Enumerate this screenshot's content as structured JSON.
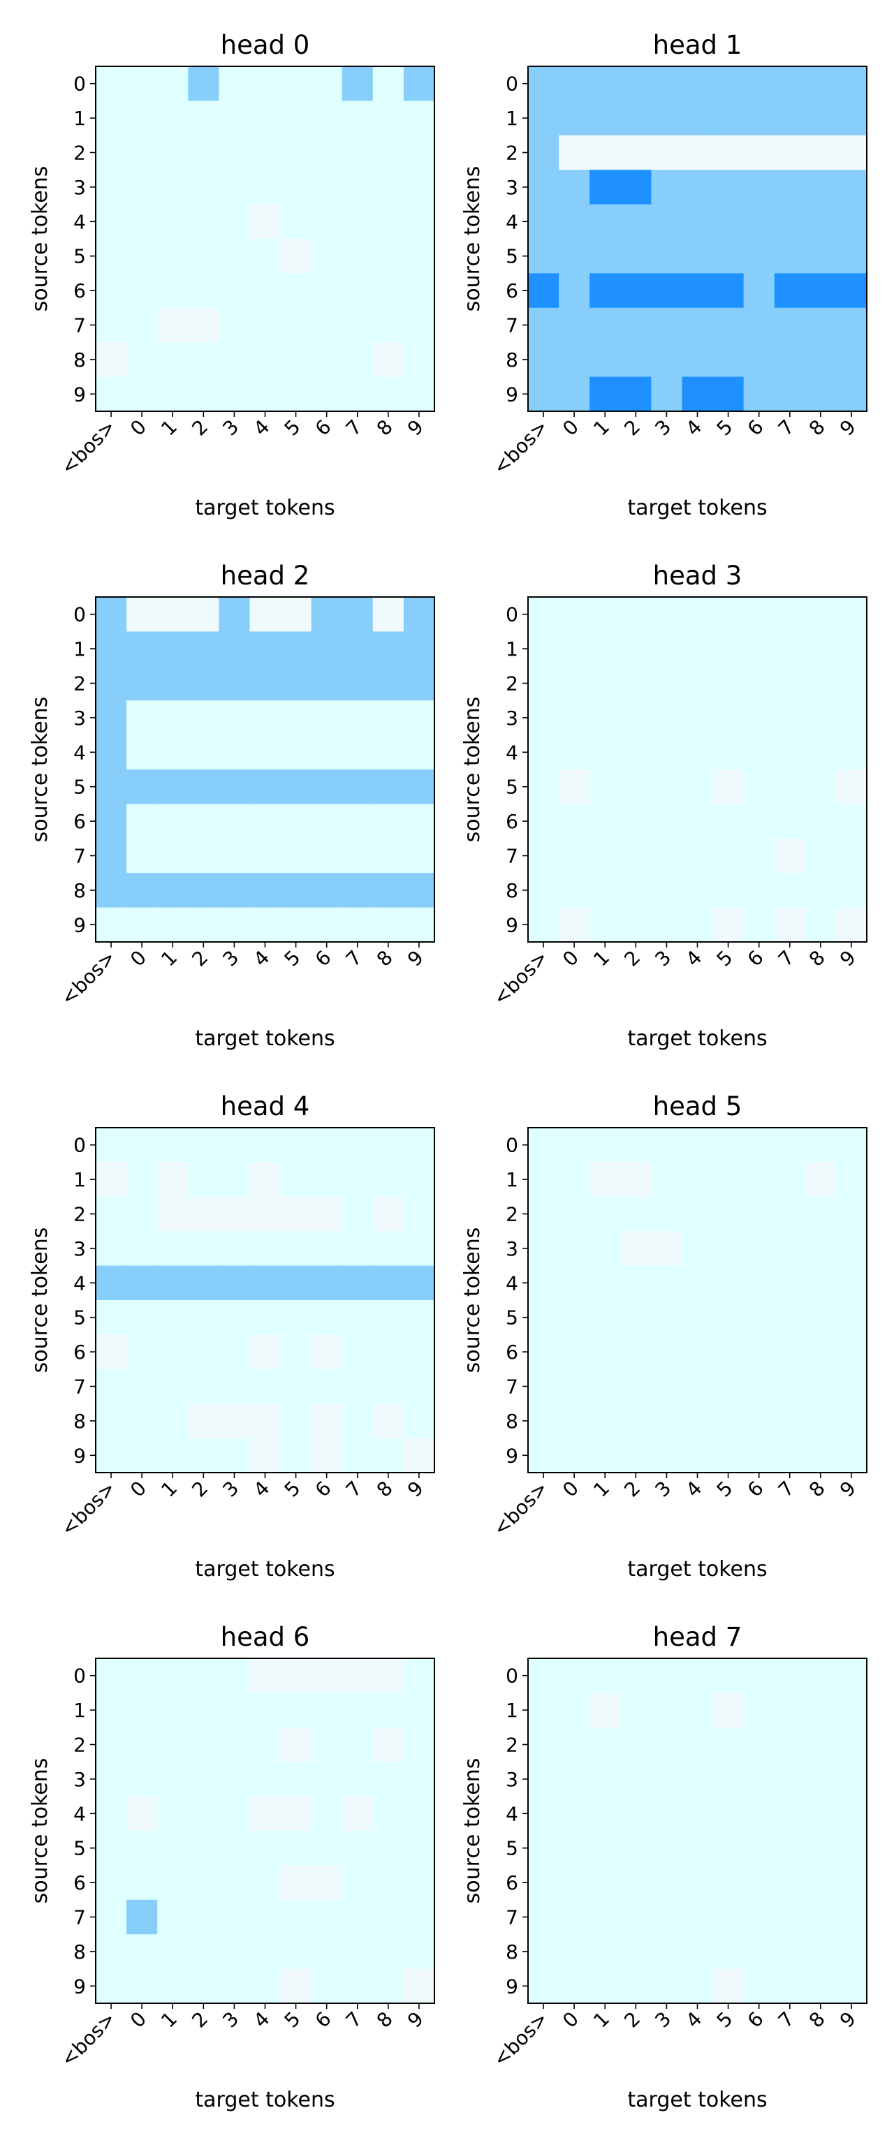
{
  "palette": {
    "0": "#f0fafc",
    "1": "#e0ffff",
    "2": "#87cefa",
    "3": "#1e90ff",
    "frame": "#000000",
    "background": "#ffffff"
  },
  "chart_data": [
    {
      "type": "heatmap",
      "title": "head 0",
      "xlabel": "target tokens",
      "ylabel": "source tokens",
      "x_ticks": [
        "<bos>",
        "0",
        "1",
        "2",
        "3",
        "4",
        "5",
        "6",
        "7",
        "8",
        "9"
      ],
      "y_ticks": [
        "0",
        "1",
        "2",
        "3",
        "4",
        "5",
        "6",
        "7",
        "8",
        "9"
      ],
      "grid": false,
      "cells": [
        [
          1,
          1,
          1,
          2,
          1,
          1,
          1,
          1,
          2,
          1,
          2
        ],
        [
          1,
          1,
          1,
          1,
          1,
          1,
          1,
          1,
          1,
          1,
          1
        ],
        [
          1,
          1,
          1,
          1,
          1,
          1,
          1,
          1,
          1,
          1,
          1
        ],
        [
          1,
          1,
          1,
          1,
          1,
          1,
          1,
          1,
          1,
          1,
          1
        ],
        [
          1,
          1,
          1,
          1,
          1,
          0,
          1,
          1,
          1,
          1,
          1
        ],
        [
          1,
          1,
          1,
          1,
          1,
          1,
          0,
          1,
          1,
          1,
          1
        ],
        [
          1,
          1,
          1,
          1,
          1,
          1,
          1,
          1,
          1,
          1,
          1
        ],
        [
          1,
          1,
          0,
          0,
          1,
          1,
          1,
          1,
          1,
          1,
          1
        ],
        [
          0,
          1,
          1,
          1,
          1,
          1,
          1,
          1,
          1,
          0,
          1
        ],
        [
          1,
          1,
          1,
          1,
          1,
          1,
          1,
          1,
          1,
          1,
          1
        ]
      ]
    },
    {
      "type": "heatmap",
      "title": "head 1",
      "xlabel": "target tokens",
      "ylabel": "source tokens",
      "x_ticks": [
        "<bos>",
        "0",
        "1",
        "2",
        "3",
        "4",
        "5",
        "6",
        "7",
        "8",
        "9"
      ],
      "y_ticks": [
        "0",
        "1",
        "2",
        "3",
        "4",
        "5",
        "6",
        "7",
        "8",
        "9"
      ],
      "grid": false,
      "cells": [
        [
          2,
          2,
          2,
          2,
          2,
          2,
          2,
          2,
          2,
          2,
          2
        ],
        [
          2,
          2,
          2,
          2,
          2,
          2,
          2,
          2,
          2,
          2,
          2
        ],
        [
          2,
          0,
          0,
          0,
          0,
          0,
          0,
          0,
          0,
          0,
          0
        ],
        [
          2,
          2,
          3,
          3,
          2,
          2,
          2,
          2,
          2,
          2,
          2
        ],
        [
          2,
          2,
          2,
          2,
          2,
          2,
          2,
          2,
          2,
          2,
          2
        ],
        [
          2,
          2,
          2,
          2,
          2,
          2,
          2,
          2,
          2,
          2,
          2
        ],
        [
          3,
          2,
          3,
          3,
          3,
          3,
          3,
          2,
          3,
          3,
          3
        ],
        [
          2,
          2,
          2,
          2,
          2,
          2,
          2,
          2,
          2,
          2,
          2
        ],
        [
          2,
          2,
          2,
          2,
          2,
          2,
          2,
          2,
          2,
          2,
          2
        ],
        [
          2,
          2,
          3,
          3,
          2,
          3,
          3,
          2,
          2,
          2,
          2
        ]
      ]
    },
    {
      "type": "heatmap",
      "title": "head 2",
      "xlabel": "target tokens",
      "ylabel": "source tokens",
      "x_ticks": [
        "<bos>",
        "0",
        "1",
        "2",
        "3",
        "4",
        "5",
        "6",
        "7",
        "8",
        "9"
      ],
      "y_ticks": [
        "0",
        "1",
        "2",
        "3",
        "4",
        "5",
        "6",
        "7",
        "8",
        "9"
      ],
      "grid": false,
      "cells": [
        [
          2,
          0,
          0,
          0,
          2,
          0,
          0,
          2,
          2,
          0,
          2
        ],
        [
          2,
          2,
          2,
          2,
          2,
          2,
          2,
          2,
          2,
          2,
          2
        ],
        [
          2,
          2,
          2,
          2,
          2,
          2,
          2,
          2,
          2,
          2,
          2
        ],
        [
          2,
          1,
          1,
          1,
          1,
          1,
          1,
          1,
          1,
          1,
          1
        ],
        [
          2,
          1,
          1,
          1,
          1,
          1,
          1,
          1,
          1,
          1,
          1
        ],
        [
          2,
          2,
          2,
          2,
          2,
          2,
          2,
          2,
          2,
          2,
          2
        ],
        [
          2,
          1,
          1,
          1,
          1,
          1,
          1,
          1,
          1,
          1,
          1
        ],
        [
          2,
          1,
          1,
          1,
          1,
          1,
          1,
          1,
          1,
          1,
          1
        ],
        [
          2,
          2,
          2,
          2,
          2,
          2,
          2,
          2,
          2,
          2,
          2
        ],
        [
          1,
          1,
          1,
          1,
          1,
          1,
          1,
          1,
          1,
          1,
          1
        ]
      ]
    },
    {
      "type": "heatmap",
      "title": "head 3",
      "xlabel": "target tokens",
      "ylabel": "source tokens",
      "x_ticks": [
        "<bos>",
        "0",
        "1",
        "2",
        "3",
        "4",
        "5",
        "6",
        "7",
        "8",
        "9"
      ],
      "y_ticks": [
        "0",
        "1",
        "2",
        "3",
        "4",
        "5",
        "6",
        "7",
        "8",
        "9"
      ],
      "grid": false,
      "cells": [
        [
          1,
          1,
          1,
          1,
          1,
          1,
          1,
          1,
          1,
          1,
          1
        ],
        [
          1,
          1,
          1,
          1,
          1,
          1,
          1,
          1,
          1,
          1,
          1
        ],
        [
          1,
          1,
          1,
          1,
          1,
          1,
          1,
          1,
          1,
          1,
          1
        ],
        [
          1,
          1,
          1,
          1,
          1,
          1,
          1,
          1,
          1,
          1,
          1
        ],
        [
          1,
          1,
          1,
          1,
          1,
          1,
          1,
          1,
          1,
          1,
          1
        ],
        [
          1,
          0,
          1,
          1,
          1,
          1,
          0,
          1,
          1,
          1,
          0
        ],
        [
          1,
          1,
          1,
          1,
          1,
          1,
          1,
          1,
          1,
          1,
          1
        ],
        [
          1,
          1,
          1,
          1,
          1,
          1,
          1,
          1,
          0,
          1,
          1
        ],
        [
          1,
          1,
          1,
          1,
          1,
          1,
          1,
          1,
          1,
          1,
          1
        ],
        [
          1,
          0,
          1,
          1,
          1,
          1,
          0,
          1,
          0,
          1,
          0
        ]
      ]
    },
    {
      "type": "heatmap",
      "title": "head 4",
      "xlabel": "target tokens",
      "ylabel": "source tokens",
      "x_ticks": [
        "<bos>",
        "0",
        "1",
        "2",
        "3",
        "4",
        "5",
        "6",
        "7",
        "8",
        "9"
      ],
      "y_ticks": [
        "0",
        "1",
        "2",
        "3",
        "4",
        "5",
        "6",
        "7",
        "8",
        "9"
      ],
      "grid": false,
      "cells": [
        [
          1,
          1,
          1,
          1,
          1,
          1,
          1,
          1,
          1,
          1,
          1
        ],
        [
          0,
          1,
          0,
          1,
          1,
          0,
          1,
          1,
          1,
          1,
          1
        ],
        [
          1,
          1,
          0,
          0,
          0,
          0,
          0,
          0,
          1,
          0,
          1
        ],
        [
          1,
          1,
          1,
          1,
          1,
          1,
          1,
          1,
          1,
          1,
          1
        ],
        [
          2,
          2,
          2,
          2,
          2,
          2,
          2,
          2,
          2,
          2,
          2
        ],
        [
          1,
          1,
          1,
          1,
          1,
          1,
          1,
          1,
          1,
          1,
          1
        ],
        [
          0,
          1,
          1,
          1,
          1,
          0,
          1,
          0,
          1,
          1,
          1
        ],
        [
          1,
          1,
          1,
          1,
          1,
          1,
          1,
          1,
          1,
          1,
          1
        ],
        [
          1,
          1,
          1,
          0,
          0,
          0,
          1,
          0,
          1,
          0,
          1
        ],
        [
          1,
          1,
          1,
          1,
          1,
          0,
          1,
          0,
          1,
          1,
          0
        ]
      ]
    },
    {
      "type": "heatmap",
      "title": "head 5",
      "xlabel": "target tokens",
      "ylabel": "source tokens",
      "x_ticks": [
        "<bos>",
        "0",
        "1",
        "2",
        "3",
        "4",
        "5",
        "6",
        "7",
        "8",
        "9"
      ],
      "y_ticks": [
        "0",
        "1",
        "2",
        "3",
        "4",
        "5",
        "6",
        "7",
        "8",
        "9"
      ],
      "grid": false,
      "cells": [
        [
          1,
          1,
          1,
          1,
          1,
          1,
          1,
          1,
          1,
          1,
          1
        ],
        [
          1,
          1,
          0,
          0,
          1,
          1,
          1,
          1,
          1,
          0,
          1
        ],
        [
          1,
          1,
          1,
          1,
          1,
          1,
          1,
          1,
          1,
          1,
          1
        ],
        [
          1,
          1,
          1,
          0,
          0,
          1,
          1,
          1,
          1,
          1,
          1
        ],
        [
          1,
          1,
          1,
          1,
          1,
          1,
          1,
          1,
          1,
          1,
          1
        ],
        [
          1,
          1,
          1,
          1,
          1,
          1,
          1,
          1,
          1,
          1,
          1
        ],
        [
          1,
          1,
          1,
          1,
          1,
          1,
          1,
          1,
          1,
          1,
          1
        ],
        [
          1,
          1,
          1,
          1,
          1,
          1,
          1,
          1,
          1,
          1,
          1
        ],
        [
          1,
          1,
          1,
          1,
          1,
          1,
          1,
          1,
          1,
          1,
          1
        ],
        [
          1,
          1,
          1,
          1,
          1,
          1,
          1,
          1,
          1,
          1,
          1
        ]
      ]
    },
    {
      "type": "heatmap",
      "title": "head 6",
      "xlabel": "target tokens",
      "ylabel": "source tokens",
      "x_ticks": [
        "<bos>",
        "0",
        "1",
        "2",
        "3",
        "4",
        "5",
        "6",
        "7",
        "8",
        "9"
      ],
      "y_ticks": [
        "0",
        "1",
        "2",
        "3",
        "4",
        "5",
        "6",
        "7",
        "8",
        "9"
      ],
      "grid": false,
      "cells": [
        [
          1,
          1,
          1,
          1,
          1,
          0,
          0,
          0,
          0,
          0,
          1
        ],
        [
          1,
          1,
          1,
          1,
          1,
          1,
          1,
          1,
          1,
          1,
          1
        ],
        [
          1,
          1,
          1,
          1,
          1,
          1,
          0,
          1,
          1,
          0,
          1
        ],
        [
          1,
          1,
          1,
          1,
          1,
          1,
          1,
          1,
          1,
          1,
          1
        ],
        [
          1,
          0,
          1,
          1,
          1,
          0,
          0,
          1,
          0,
          1,
          1
        ],
        [
          1,
          1,
          1,
          1,
          1,
          1,
          1,
          1,
          1,
          1,
          1
        ],
        [
          1,
          1,
          1,
          1,
          1,
          1,
          0,
          0,
          1,
          1,
          1
        ],
        [
          1,
          2,
          1,
          1,
          1,
          1,
          1,
          1,
          1,
          1,
          1
        ],
        [
          1,
          1,
          1,
          1,
          1,
          1,
          1,
          1,
          1,
          1,
          1
        ],
        [
          1,
          1,
          1,
          1,
          1,
          1,
          0,
          1,
          1,
          1,
          0
        ]
      ]
    },
    {
      "type": "heatmap",
      "title": "head 7",
      "xlabel": "target tokens",
      "ylabel": "source tokens",
      "x_ticks": [
        "<bos>",
        "0",
        "1",
        "2",
        "3",
        "4",
        "5",
        "6",
        "7",
        "8",
        "9"
      ],
      "y_ticks": [
        "0",
        "1",
        "2",
        "3",
        "4",
        "5",
        "6",
        "7",
        "8",
        "9"
      ],
      "grid": false,
      "cells": [
        [
          1,
          1,
          1,
          1,
          1,
          1,
          1,
          1,
          1,
          1,
          1
        ],
        [
          1,
          1,
          0,
          1,
          1,
          1,
          0,
          1,
          1,
          1,
          1
        ],
        [
          1,
          1,
          1,
          1,
          1,
          1,
          1,
          1,
          1,
          1,
          1
        ],
        [
          1,
          1,
          1,
          1,
          1,
          1,
          1,
          1,
          1,
          1,
          1
        ],
        [
          1,
          1,
          1,
          1,
          1,
          1,
          1,
          1,
          1,
          1,
          1
        ],
        [
          1,
          1,
          1,
          1,
          1,
          1,
          1,
          1,
          1,
          1,
          1
        ],
        [
          1,
          1,
          1,
          1,
          1,
          1,
          1,
          1,
          1,
          1,
          1
        ],
        [
          1,
          1,
          1,
          1,
          1,
          1,
          1,
          1,
          1,
          1,
          1
        ],
        [
          1,
          1,
          1,
          1,
          1,
          1,
          1,
          1,
          1,
          1,
          1
        ],
        [
          1,
          1,
          1,
          1,
          1,
          1,
          0,
          1,
          1,
          1,
          1
        ]
      ]
    }
  ]
}
